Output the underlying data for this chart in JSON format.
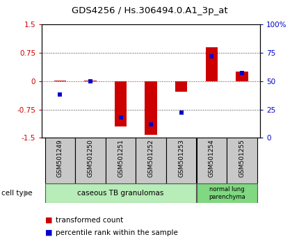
{
  "title": "GDS4256 / Hs.306494.0.A1_3p_at",
  "samples": [
    "GSM501249",
    "GSM501250",
    "GSM501251",
    "GSM501252",
    "GSM501253",
    "GSM501254",
    "GSM501255"
  ],
  "red_values": [
    0.02,
    0.02,
    -1.2,
    -1.42,
    -0.28,
    0.9,
    0.25
  ],
  "blue_values_pct": [
    38,
    50,
    18,
    12,
    22,
    72,
    57
  ],
  "ylim_left": [
    -1.5,
    1.5
  ],
  "ylim_right": [
    0,
    100
  ],
  "yticks_left": [
    -1.5,
    -0.75,
    0,
    0.75,
    1.5
  ],
  "ytick_labels_left": [
    "-1.5",
    "-0.75",
    "0",
    "0.75",
    "1.5"
  ],
  "yticks_right": [
    0,
    25,
    50,
    75,
    100
  ],
  "ytick_labels_right": [
    "0",
    "25",
    "50",
    "75",
    "100%"
  ],
  "cell_groups": [
    {
      "label": "caseous TB granulomas",
      "indices": [
        0,
        1,
        2,
        3,
        4
      ],
      "color": "#b8ecb8"
    },
    {
      "label": "normal lung\nparenchyma",
      "indices": [
        5,
        6
      ],
      "color": "#80d880"
    }
  ],
  "legend_red_label": "transformed count",
  "legend_blue_label": "percentile rank within the sample",
  "cell_type_label": "cell type",
  "bar_width": 0.4,
  "blue_marker_size": 5,
  "red_color": "#cc0000",
  "blue_color": "#0000cc",
  "bar_bg_color": "#c8c8c8",
  "dotted_line_color": "#333333",
  "zero_line_color": "#cc0000",
  "fig_width": 4.3,
  "fig_height": 3.54,
  "dpi": 100
}
